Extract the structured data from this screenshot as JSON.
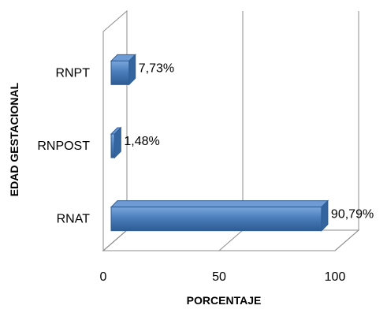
{
  "chart_data": {
    "type": "bar",
    "orientation": "horizontal",
    "style": "3d",
    "categories": [
      "RNPT",
      "RNPOST",
      "RNAT"
    ],
    "values": [
      7.73,
      1.48,
      90.79
    ],
    "data_labels": [
      "7,73%",
      "1,48%",
      "90,79%"
    ],
    "xlabel": "PORCENTAJE",
    "ylabel": "EDAD GESTACIONAL",
    "xlim": [
      0,
      100
    ],
    "xticks": [
      "0",
      "50",
      "100"
    ],
    "grid": true,
    "legend": "none",
    "bar_color": "#4A7EBB"
  }
}
